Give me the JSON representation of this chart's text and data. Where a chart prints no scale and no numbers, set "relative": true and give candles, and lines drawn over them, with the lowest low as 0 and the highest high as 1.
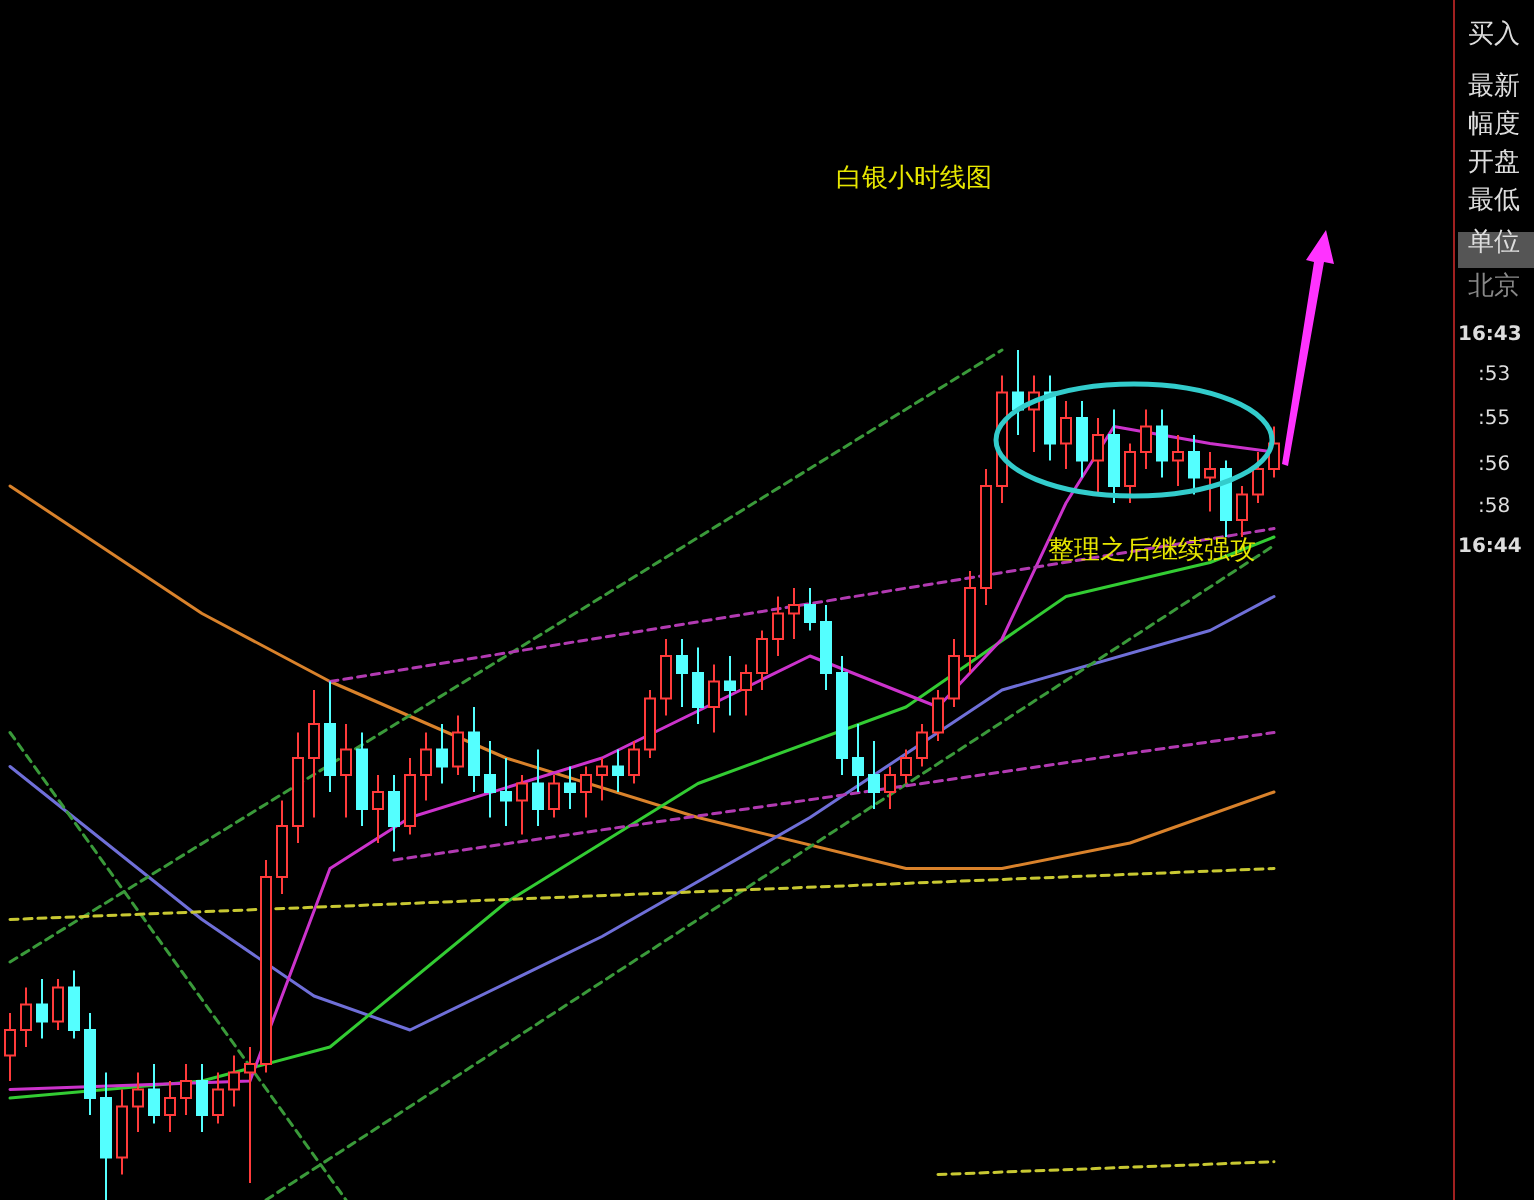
{
  "chart_data": {
    "type": "candlestick",
    "title": "白银小时线图",
    "relative": true,
    "categories": [
      null,
      null,
      null,
      null,
      null,
      null,
      null,
      null,
      null,
      null,
      null,
      null,
      null,
      null,
      null,
      null,
      null,
      null,
      null,
      null,
      null,
      null,
      null,
      null,
      null,
      null,
      null,
      null,
      null,
      null,
      null,
      null,
      null,
      null,
      null,
      null,
      null,
      null,
      null,
      null,
      null,
      null,
      null,
      null,
      null,
      null,
      null,
      null,
      null,
      null,
      null,
      null,
      null,
      null,
      null,
      null,
      null,
      null,
      null,
      null,
      null,
      null,
      null,
      null,
      null,
      null,
      null,
      null,
      null,
      null,
      null,
      null,
      null,
      null,
      null,
      null,
      null,
      null,
      null,
      null
    ],
    "ohlc": [
      [
        0.17,
        0.22,
        0.14,
        0.2
      ],
      [
        0.2,
        0.25,
        0.18,
        0.23
      ],
      [
        0.23,
        0.26,
        0.19,
        0.21
      ],
      [
        0.21,
        0.26,
        0.2,
        0.25
      ],
      [
        0.25,
        0.27,
        0.19,
        0.2
      ],
      [
        0.2,
        0.22,
        0.1,
        0.12
      ],
      [
        0.12,
        0.15,
        0.0,
        0.05
      ],
      [
        0.05,
        0.13,
        0.03,
        0.11
      ],
      [
        0.11,
        0.15,
        0.08,
        0.13
      ],
      [
        0.13,
        0.16,
        0.09,
        0.1
      ],
      [
        0.1,
        0.14,
        0.08,
        0.12
      ],
      [
        0.12,
        0.16,
        0.1,
        0.14
      ],
      [
        0.14,
        0.16,
        0.08,
        0.1
      ],
      [
        0.1,
        0.15,
        0.09,
        0.13
      ],
      [
        0.13,
        0.17,
        0.11,
        0.15
      ],
      [
        0.15,
        0.18,
        0.02,
        0.16
      ],
      [
        0.16,
        0.4,
        0.15,
        0.38
      ],
      [
        0.38,
        0.47,
        0.36,
        0.44
      ],
      [
        0.44,
        0.55,
        0.42,
        0.52
      ],
      [
        0.52,
        0.6,
        0.45,
        0.56
      ],
      [
        0.56,
        0.61,
        0.48,
        0.5
      ],
      [
        0.5,
        0.56,
        0.45,
        0.53
      ],
      [
        0.53,
        0.55,
        0.44,
        0.46
      ],
      [
        0.46,
        0.5,
        0.42,
        0.48
      ],
      [
        0.48,
        0.5,
        0.41,
        0.44
      ],
      [
        0.44,
        0.52,
        0.43,
        0.5
      ],
      [
        0.5,
        0.55,
        0.47,
        0.53
      ],
      [
        0.53,
        0.56,
        0.49,
        0.51
      ],
      [
        0.51,
        0.57,
        0.5,
        0.55
      ],
      [
        0.55,
        0.58,
        0.48,
        0.5
      ],
      [
        0.5,
        0.54,
        0.45,
        0.48
      ],
      [
        0.48,
        0.52,
        0.44,
        0.47
      ],
      [
        0.47,
        0.5,
        0.43,
        0.49
      ],
      [
        0.49,
        0.53,
        0.44,
        0.46
      ],
      [
        0.46,
        0.5,
        0.45,
        0.49
      ],
      [
        0.49,
        0.51,
        0.46,
        0.48
      ],
      [
        0.48,
        0.51,
        0.45,
        0.5
      ],
      [
        0.5,
        0.52,
        0.47,
        0.51
      ],
      [
        0.51,
        0.53,
        0.48,
        0.5
      ],
      [
        0.5,
        0.54,
        0.49,
        0.53
      ],
      [
        0.53,
        0.6,
        0.52,
        0.59
      ],
      [
        0.59,
        0.66,
        0.57,
        0.64
      ],
      [
        0.64,
        0.66,
        0.58,
        0.62
      ],
      [
        0.62,
        0.65,
        0.56,
        0.58
      ],
      [
        0.58,
        0.63,
        0.55,
        0.61
      ],
      [
        0.61,
        0.64,
        0.57,
        0.6
      ],
      [
        0.6,
        0.63,
        0.57,
        0.62
      ],
      [
        0.62,
        0.67,
        0.6,
        0.66
      ],
      [
        0.66,
        0.71,
        0.64,
        0.69
      ],
      [
        0.69,
        0.72,
        0.66,
        0.7
      ],
      [
        0.7,
        0.72,
        0.67,
        0.68
      ],
      [
        0.68,
        0.7,
        0.6,
        0.62
      ],
      [
        0.62,
        0.64,
        0.5,
        0.52
      ],
      [
        0.52,
        0.56,
        0.48,
        0.5
      ],
      [
        0.5,
        0.54,
        0.46,
        0.48
      ],
      [
        0.48,
        0.51,
        0.46,
        0.5
      ],
      [
        0.5,
        0.53,
        0.49,
        0.52
      ],
      [
        0.52,
        0.56,
        0.51,
        0.55
      ],
      [
        0.55,
        0.6,
        0.54,
        0.59
      ],
      [
        0.59,
        0.66,
        0.58,
        0.64
      ],
      [
        0.64,
        0.74,
        0.62,
        0.72
      ],
      [
        0.72,
        0.86,
        0.7,
        0.84
      ],
      [
        0.84,
        0.97,
        0.82,
        0.95
      ],
      [
        0.95,
        1.0,
        0.9,
        0.93
      ],
      [
        0.93,
        0.97,
        0.88,
        0.95
      ],
      [
        0.95,
        0.97,
        0.87,
        0.89
      ],
      [
        0.89,
        0.94,
        0.86,
        0.92
      ],
      [
        0.92,
        0.94,
        0.85,
        0.87
      ],
      [
        0.87,
        0.92,
        0.83,
        0.9
      ],
      [
        0.9,
        0.93,
        0.82,
        0.84
      ],
      [
        0.84,
        0.89,
        0.82,
        0.88
      ],
      [
        0.88,
        0.93,
        0.86,
        0.91
      ],
      [
        0.91,
        0.93,
        0.85,
        0.87
      ],
      [
        0.87,
        0.9,
        0.84,
        0.88
      ],
      [
        0.88,
        0.9,
        0.83,
        0.85
      ],
      [
        0.85,
        0.88,
        0.81,
        0.86
      ],
      [
        0.86,
        0.87,
        0.78,
        0.8
      ],
      [
        0.8,
        0.84,
        0.78,
        0.83
      ],
      [
        0.83,
        0.88,
        0.82,
        0.86
      ],
      [
        0.86,
        0.91,
        0.85,
        0.89
      ]
    ],
    "colors": [
      "#ff3b3b",
      "#ff3b3b",
      "#54ffff",
      "#ff3b3b",
      "#54ffff",
      "#54ffff",
      "#54ffff",
      "#ff3b3b",
      "#ff3b3b",
      "#54ffff",
      "#ff3b3b",
      "#ff3b3b",
      "#54ffff",
      "#ff3b3b",
      "#ff3b3b",
      "#ff3b3b",
      "#ff3b3b",
      "#ff3b3b",
      "#ff3b3b",
      "#ff3b3b",
      "#54ffff",
      "#ff3b3b",
      "#54ffff",
      "#ff3b3b",
      "#54ffff",
      "#ff3b3b",
      "#ff3b3b",
      "#54ffff",
      "#ff3b3b",
      "#54ffff",
      "#54ffff",
      "#54ffff",
      "#ff3b3b",
      "#54ffff",
      "#ff3b3b",
      "#54ffff",
      "#ff3b3b",
      "#ff3b3b",
      "#54ffff",
      "#ff3b3b",
      "#ff3b3b",
      "#ff3b3b",
      "#54ffff",
      "#54ffff",
      "#ff3b3b",
      "#54ffff",
      "#ff3b3b",
      "#ff3b3b",
      "#ff3b3b",
      "#ff3b3b",
      "#54ffff",
      "#54ffff",
      "#54ffff",
      "#54ffff",
      "#54ffff",
      "#ff3b3b",
      "#ff3b3b",
      "#ff3b3b",
      "#ff3b3b",
      "#ff3b3b",
      "#ff3b3b",
      "#ff3b3b",
      "#ff3b3b",
      "#54ffff",
      "#ff3b3b",
      "#54ffff",
      "#ff3b3b",
      "#54ffff",
      "#ff3b3b",
      "#54ffff",
      "#ff3b3b",
      "#ff3b3b",
      "#54ffff",
      "#ff3b3b",
      "#54ffff",
      "#ff3b3b",
      "#54ffff",
      "#ff3b3b",
      "#ff3b3b",
      "#ff3b3b"
    ],
    "series": [
      {
        "type": "line",
        "color": "#d9822b",
        "line_style": "solid",
        "values": [
          0.84,
          null,
          null,
          null,
          null,
          null,
          null,
          null,
          null,
          null,
          null,
          null,
          0.69,
          null,
          null,
          null,
          null,
          null,
          null,
          null,
          0.61,
          null,
          null,
          null,
          null,
          null,
          null,
          null,
          null,
          null,
          null,
          0.52,
          null,
          null,
          null,
          null,
          null,
          null,
          null,
          null,
          null,
          null,
          null,
          0.45,
          null,
          null,
          null,
          null,
          null,
          null,
          null,
          null,
          null,
          null,
          null,
          null,
          0.39,
          null,
          null,
          null,
          null,
          null,
          0.39,
          null,
          null,
          null,
          null,
          null,
          null,
          null,
          0.42,
          null,
          null,
          null,
          null,
          null,
          null,
          null,
          null,
          0.48
        ]
      },
      {
        "type": "line",
        "color": "#6f6fd8",
        "line_style": "solid",
        "values": [
          0.51,
          null,
          null,
          null,
          null,
          null,
          null,
          null,
          null,
          null,
          null,
          null,
          0.33,
          null,
          null,
          null,
          null,
          null,
          null,
          0.24,
          null,
          null,
          null,
          null,
          null,
          0.2,
          null,
          null,
          null,
          null,
          null,
          null,
          null,
          null,
          null,
          null,
          null,
          0.31,
          null,
          null,
          null,
          null,
          null,
          null,
          null,
          null,
          null,
          null,
          null,
          null,
          0.45,
          null,
          null,
          null,
          null,
          null,
          null,
          null,
          null,
          null,
          null,
          null,
          0.6,
          null,
          null,
          null,
          null,
          null,
          null,
          null,
          null,
          null,
          null,
          null,
          null,
          0.67,
          null,
          null,
          null,
          0.71
        ]
      },
      {
        "type": "line",
        "color": "#33cc33",
        "line_style": "solid",
        "values": [
          0.12,
          null,
          null,
          null,
          null,
          null,
          null,
          null,
          null,
          null,
          null,
          null,
          0.14,
          null,
          null,
          null,
          null,
          null,
          null,
          null,
          0.18,
          null,
          null,
          null,
          null,
          null,
          null,
          null,
          null,
          null,
          null,
          0.35,
          null,
          null,
          null,
          null,
          null,
          null,
          null,
          null,
          null,
          null,
          null,
          0.49,
          null,
          null,
          null,
          null,
          null,
          null,
          null,
          null,
          null,
          null,
          null,
          null,
          0.58,
          null,
          null,
          null,
          null,
          null,
          null,
          null,
          null,
          null,
          0.71,
          null,
          null,
          null,
          null,
          null,
          null,
          null,
          null,
          0.75,
          null,
          null,
          null,
          0.78
        ]
      },
      {
        "type": "line",
        "color": "#cc33cc",
        "line_style": "solid",
        "values": [
          0.13,
          null,
          null,
          null,
          null,
          null,
          null,
          null,
          null,
          null,
          null,
          null,
          null,
          null,
          null,
          0.14,
          null,
          null,
          null,
          null,
          0.39,
          null,
          null,
          null,
          null,
          0.45,
          null,
          null,
          null,
          null,
          null,
          null,
          null,
          null,
          null,
          null,
          null,
          0.52,
          null,
          null,
          null,
          null,
          null,
          null,
          null,
          null,
          null,
          null,
          null,
          null,
          0.64,
          null,
          null,
          null,
          null,
          null,
          null,
          null,
          0.58,
          null,
          null,
          null,
          0.66,
          null,
          null,
          null,
          0.82,
          null,
          null,
          0.91,
          null,
          null,
          null,
          null,
          null,
          0.89,
          null,
          null,
          null,
          0.88
        ]
      },
      {
        "type": "line",
        "color": "#3a9a3a",
        "line_style": "dashed",
        "values": [
          0.28,
          null,
          null,
          null,
          null,
          null,
          null,
          null,
          null,
          null,
          null,
          null,
          null,
          null,
          null,
          null,
          null,
          null,
          null,
          null,
          null,
          null,
          null,
          null,
          null,
          null,
          null,
          null,
          null,
          null,
          null,
          null,
          null,
          null,
          null,
          null,
          null,
          null,
          null,
          null,
          null,
          null,
          null,
          null,
          null,
          null,
          null,
          null,
          null,
          null,
          null,
          null,
          null,
          null,
          null,
          null,
          null,
          null,
          null,
          null,
          null,
          null,
          1.0,
          null,
          null,
          null,
          null,
          null,
          null,
          null,
          null,
          null,
          null,
          null,
          null,
          null,
          null,
          null,
          null,
          null
        ]
      },
      {
        "type": "line",
        "color": "#3a9a3a",
        "line_style": "dashed",
        "values": [
          null,
          null,
          null,
          null,
          null,
          null,
          null,
          null,
          null,
          null,
          null,
          null,
          null,
          null,
          null,
          null,
          0,
          null,
          null,
          null,
          null,
          null,
          null,
          null,
          null,
          null,
          null,
          null,
          null,
          null,
          null,
          null,
          null,
          null,
          null,
          null,
          null,
          null,
          null,
          null,
          null,
          null,
          null,
          null,
          null,
          null,
          null,
          null,
          null,
          null,
          null,
          null,
          null,
          null,
          null,
          null,
          null,
          null,
          null,
          null,
          null,
          null,
          null,
          null,
          null,
          null,
          null,
          null,
          null,
          null,
          null,
          null,
          null,
          null,
          null,
          null,
          null,
          null,
          null,
          0.77
        ]
      },
      {
        "type": "line",
        "color": "#3a9a3a",
        "line_style": "dashed",
        "values": [
          0.55,
          null,
          null,
          null,
          null,
          null,
          null,
          null,
          null,
          null,
          null,
          null,
          null,
          null,
          null,
          null,
          null,
          null,
          null,
          null,
          null,
          0,
          null,
          null,
          null,
          null,
          null,
          null,
          null,
          null,
          null,
          null,
          null,
          null,
          null,
          null,
          null,
          null,
          null,
          null,
          null,
          null,
          null,
          null,
          null,
          null,
          null,
          null,
          null,
          null,
          null,
          null,
          null,
          null,
          null,
          null,
          null,
          null,
          null,
          null,
          null,
          null,
          null,
          null,
          null,
          null,
          null,
          null,
          null,
          null,
          null,
          null,
          null,
          null,
          null,
          null,
          null,
          null,
          null,
          null
        ]
      },
      {
        "type": "line",
        "color": "#b23ab2",
        "line_style": "dashed",
        "values": [
          null,
          null,
          null,
          null,
          null,
          null,
          null,
          null,
          null,
          null,
          null,
          null,
          null,
          null,
          null,
          null,
          null,
          null,
          null,
          null,
          0.61,
          null,
          null,
          null,
          null,
          null,
          null,
          null,
          null,
          null,
          null,
          null,
          null,
          null,
          null,
          null,
          null,
          null,
          null,
          null,
          null,
          null,
          null,
          null,
          null,
          null,
          null,
          null,
          null,
          null,
          null,
          null,
          null,
          null,
          null,
          null,
          null,
          null,
          null,
          null,
          null,
          null,
          null,
          null,
          null,
          null,
          null,
          null,
          null,
          null,
          null,
          null,
          null,
          null,
          null,
          null,
          null,
          null,
          null,
          0.79
        ]
      },
      {
        "type": "line",
        "color": "#b23ab2",
        "line_style": "dashed",
        "values": [
          null,
          null,
          null,
          null,
          null,
          null,
          null,
          null,
          null,
          null,
          null,
          null,
          null,
          null,
          null,
          null,
          null,
          null,
          null,
          null,
          null,
          null,
          null,
          null,
          0.4,
          null,
          null,
          null,
          null,
          null,
          null,
          null,
          null,
          null,
          null,
          null,
          null,
          null,
          null,
          null,
          null,
          null,
          null,
          null,
          null,
          null,
          null,
          null,
          null,
          null,
          null,
          null,
          null,
          null,
          null,
          null,
          null,
          null,
          null,
          null,
          null,
          null,
          null,
          null,
          null,
          null,
          null,
          null,
          null,
          null,
          null,
          null,
          null,
          null,
          null,
          null,
          null,
          null,
          null,
          0.55
        ]
      },
      {
        "type": "line",
        "color": "#c8c832",
        "line_style": "dashed",
        "values": [
          0.33,
          null,
          null,
          null,
          null,
          null,
          null,
          null,
          null,
          null,
          null,
          null,
          null,
          null,
          null,
          null,
          null,
          null,
          null,
          null,
          null,
          null,
          null,
          null,
          null,
          null,
          null,
          null,
          null,
          null,
          null,
          null,
          null,
          null,
          null,
          null,
          null,
          null,
          null,
          null,
          null,
          null,
          null,
          null,
          null,
          null,
          null,
          null,
          null,
          null,
          null,
          null,
          null,
          null,
          null,
          null,
          null,
          null,
          null,
          null,
          null,
          null,
          null,
          null,
          null,
          null,
          null,
          null,
          null,
          null,
          null,
          null,
          null,
          null,
          null,
          null,
          null,
          null,
          null,
          0.39
        ]
      },
      {
        "type": "line",
        "color": "#c8c832",
        "line_style": "dashed",
        "values": [
          null,
          null,
          null,
          null,
          null,
          null,
          null,
          null,
          null,
          null,
          null,
          null,
          null,
          null,
          null,
          null,
          null,
          null,
          null,
          null,
          null,
          null,
          null,
          null,
          null,
          null,
          null,
          null,
          null,
          null,
          null,
          null,
          null,
          null,
          null,
          null,
          null,
          null,
          null,
          null,
          null,
          null,
          null,
          null,
          null,
          null,
          null,
          null,
          null,
          null,
          null,
          null,
          null,
          null,
          null,
          null,
          null,
          null,
          0.03,
          null,
          null,
          null,
          null,
          null,
          null,
          null,
          null,
          null,
          null,
          null,
          null,
          null,
          null,
          null,
          null,
          null,
          null,
          null,
          null,
          0.045
        ]
      }
    ],
    "annotations": [
      "整理之后继续强攻",
      "买入",
      "最新",
      "幅度",
      "开盘",
      "最低",
      "单位",
      "北京",
      "16:43",
      ":53",
      ":55",
      ":56",
      ":58",
      "16:44"
    ]
  }
}
